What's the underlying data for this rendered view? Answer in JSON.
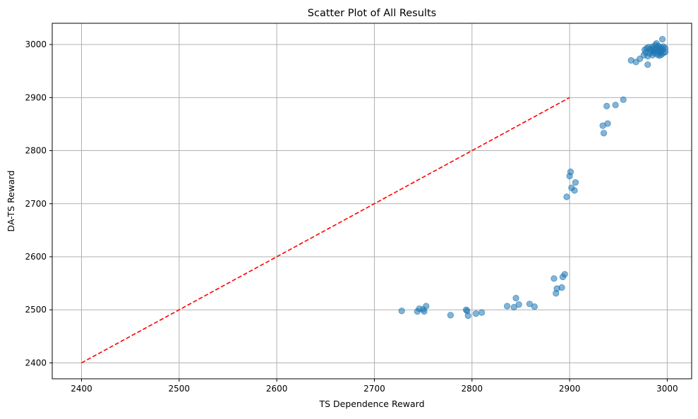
{
  "chart_data": {
    "type": "scatter",
    "title": "Scatter Plot of All Results",
    "xlabel": "TS Dependence Reward",
    "ylabel": "DA-TS Reward",
    "xlim": [
      2370,
      3025
    ],
    "ylim": [
      2370,
      3040
    ],
    "xticks": [
      2400,
      2500,
      2600,
      2700,
      2800,
      2900,
      3000
    ],
    "yticks": [
      2400,
      2500,
      2600,
      2700,
      2800,
      2900,
      3000
    ],
    "grid": true,
    "legend": "none",
    "colors": {
      "points": "#1f77b4",
      "reference_line": "#ff0000",
      "grid": "#b0b0b0"
    },
    "series": [
      {
        "kind": "points",
        "x": [
          2728,
          2744,
          2746,
          2750,
          2751,
          2753,
          2778,
          2794,
          2795,
          2796,
          2804,
          2810,
          2836,
          2843,
          2845,
          2848,
          2859,
          2864,
          2884,
          2886,
          2887,
          2892,
          2893,
          2895,
          2897,
          2900,
          2901,
          2902,
          2905,
          2906,
          2934,
          2935,
          2938,
          2939,
          2947,
          2955,
          2963,
          2968,
          2972,
          2976,
          2977,
          2978,
          2979,
          2980,
          2980,
          2981,
          2982,
          2983,
          2984,
          2985,
          2985,
          2986,
          2986,
          2987,
          2988,
          2988,
          2989,
          2990,
          2990,
          2991,
          2991,
          2992,
          2992,
          2993,
          2993,
          2994,
          2994,
          2995,
          2995,
          2996,
          2996,
          2998,
          2998
        ],
        "y": [
          2498,
          2497,
          2502,
          2501,
          2497,
          2507,
          2490,
          2500,
          2498,
          2489,
          2493,
          2495,
          2507,
          2505,
          2522,
          2510,
          2511,
          2506,
          2559,
          2531,
          2540,
          2542,
          2562,
          2567,
          2713,
          2752,
          2760,
          2730,
          2725,
          2740,
          2847,
          2833,
          2884,
          2851,
          2886,
          2896,
          2970,
          2967,
          2973,
          2980,
          2990,
          2985,
          2993,
          2962,
          2978,
          2995,
          2983,
          2991,
          2988,
          2980,
          2996,
          2987,
          2993,
          2984,
          2999,
          2990,
          3002,
          2981,
          2994,
          2986,
          2997,
          2979,
          2990,
          2985,
          2995,
          2981,
          2989,
          3010,
          2992,
          2984,
          2996,
          2986,
          2993
        ]
      },
      {
        "kind": "reference-line",
        "style": "dashed",
        "x": [
          2400,
          2900
        ],
        "y": [
          2400,
          2900
        ]
      }
    ]
  }
}
